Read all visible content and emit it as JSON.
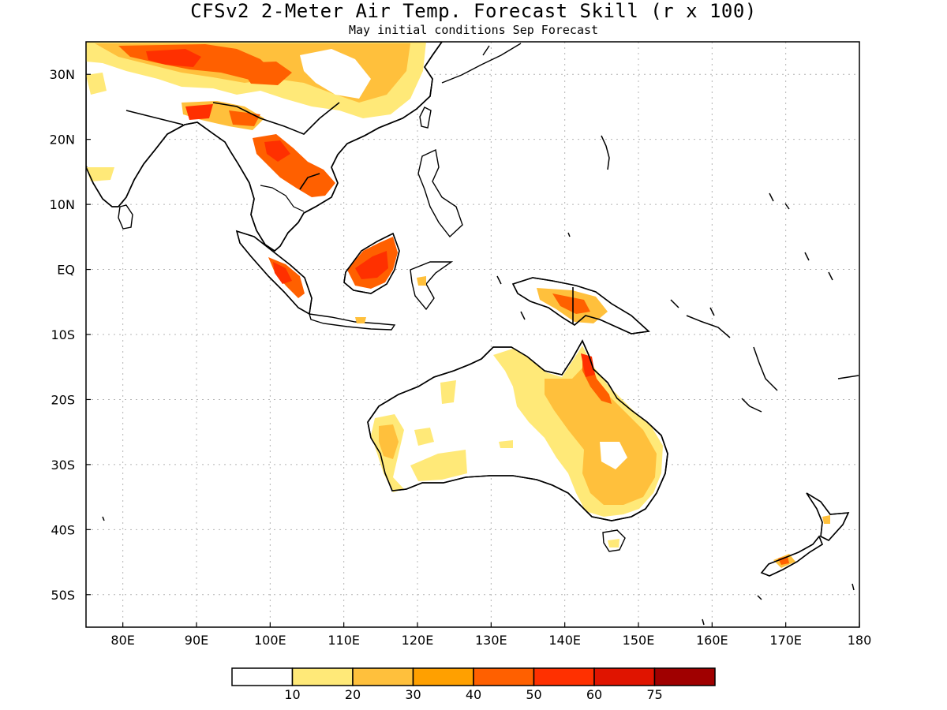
{
  "title": "CFSv2 2-Meter Air Temp. Forecast Skill (r x 100)",
  "subtitle": "May initial conditions  Sep Forecast",
  "map": {
    "lon_range": [
      75,
      180
    ],
    "lat_range": [
      -55,
      35
    ],
    "gridlines": "dotted",
    "lon_ticks": [
      {
        "value": 80,
        "label": "80E"
      },
      {
        "value": 90,
        "label": "90E"
      },
      {
        "value": 100,
        "label": "100E"
      },
      {
        "value": 110,
        "label": "110E"
      },
      {
        "value": 120,
        "label": "120E"
      },
      {
        "value": 130,
        "label": "130E"
      },
      {
        "value": 140,
        "label": "140E"
      },
      {
        "value": 150,
        "label": "150E"
      },
      {
        "value": 160,
        "label": "160E"
      },
      {
        "value": 170,
        "label": "170E"
      },
      {
        "value": 180,
        "label": "180"
      }
    ],
    "lat_ticks": [
      {
        "value": 30,
        "label": "30N"
      },
      {
        "value": 20,
        "label": "20N"
      },
      {
        "value": 10,
        "label": "10N"
      },
      {
        "value": 0,
        "label": "EQ"
      },
      {
        "value": -10,
        "label": "10S"
      },
      {
        "value": -20,
        "label": "20S"
      },
      {
        "value": -30,
        "label": "30S"
      },
      {
        "value": -40,
        "label": "40S"
      },
      {
        "value": -50,
        "label": "50S"
      }
    ]
  },
  "colorbar": {
    "colors": [
      "#ffffff",
      "#ffe978",
      "#ffc03c",
      "#ffa000",
      "#ff6000",
      "#ff3000",
      "#e01400",
      "#a00000"
    ],
    "labels": [
      "10",
      "20",
      "30",
      "40",
      "50",
      "60",
      "75"
    ]
  },
  "colors": {
    "coastline": "#000000",
    "gridline": "#b4b4b4"
  }
}
